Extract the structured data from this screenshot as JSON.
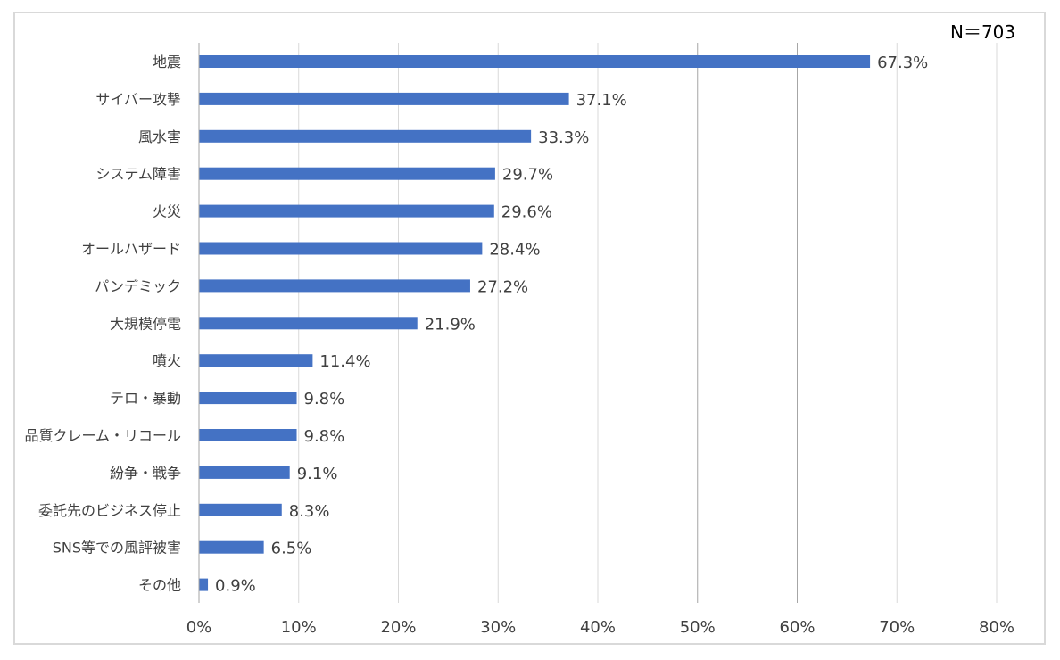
{
  "sample_size": "N＝703",
  "colors": {
    "bar": "#4472C4",
    "grid": "#d9d9d9",
    "grid_major": "#a6a6a6",
    "text": "#404040",
    "frame": "#d9d9d9"
  },
  "chart_data": {
    "type": "bar",
    "orientation": "horizontal",
    "categories": [
      "地震",
      "サイバー攻撃",
      "風水害",
      "システム障害",
      "火災",
      "オールハザード",
      "パンデミック",
      "大規模停電",
      "噴火",
      "テロ・暴動",
      "品質クレーム・リコール",
      "紛争・戦争",
      "委託先のビジネス停止",
      "SNS等での風評被害",
      "その他"
    ],
    "values": [
      67.3,
      37.1,
      33.3,
      29.7,
      29.6,
      28.4,
      27.2,
      21.9,
      11.4,
      9.8,
      9.8,
      9.1,
      8.3,
      6.5,
      0.9
    ],
    "data_labels": [
      "67.3%",
      "37.1%",
      "33.3%",
      "29.7%",
      "29.6%",
      "28.4%",
      "27.2%",
      "21.9%",
      "11.4%",
      "9.8%",
      "9.8%",
      "9.1%",
      "8.3%",
      "6.5%",
      "0.9%"
    ],
    "x_ticks": [
      "0%",
      "10%",
      "20%",
      "30%",
      "40%",
      "50%",
      "60%",
      "70%",
      "80%"
    ],
    "xlim": [
      0,
      80
    ],
    "grid": true,
    "title": "",
    "xlabel": "",
    "ylabel": ""
  }
}
